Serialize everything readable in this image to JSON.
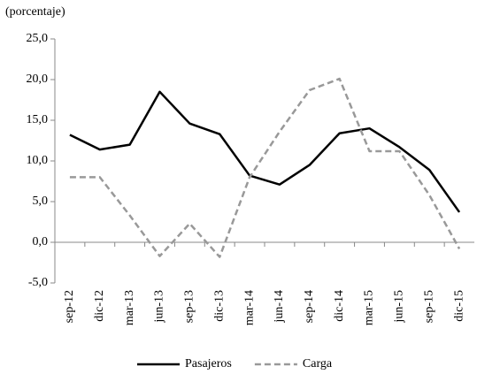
{
  "chart_data": {
    "type": "line",
    "ylabel": "(porcentaje)",
    "categories": [
      "sep-12",
      "dic-12",
      "mar-13",
      "jun-13",
      "sep-13",
      "dic-13",
      "mar-14",
      "jun-14",
      "sep-14",
      "dic-14",
      "mar-15",
      "jun-15",
      "sep-15",
      "dic-15"
    ],
    "series": [
      {
        "name": "Pasajeros",
        "color": "#000000",
        "dashed": false,
        "values": [
          13.2,
          11.4,
          12.0,
          18.5,
          14.6,
          13.3,
          8.2,
          7.1,
          9.5,
          13.4,
          14.0,
          11.7,
          8.9,
          3.7
        ]
      },
      {
        "name": "Carga",
        "color": "#999999",
        "dashed": true,
        "values": [
          8.0,
          8.0,
          3.3,
          -1.7,
          2.3,
          -1.8,
          8.0,
          13.6,
          18.7,
          20.1,
          11.2,
          11.2,
          5.8,
          -0.8
        ]
      }
    ],
    "ylim": [
      -5,
      25
    ],
    "yticks": [
      {
        "value": -5,
        "label": "-5,0"
      },
      {
        "value": 0,
        "label": "0,0"
      },
      {
        "value": 5,
        "label": "5,0"
      },
      {
        "value": 10,
        "label": "10,0"
      },
      {
        "value": 15,
        "label": "15,0"
      },
      {
        "value": 20,
        "label": "20,0"
      },
      {
        "value": 25,
        "label": "25,0"
      }
    ],
    "legend": "bottom"
  }
}
